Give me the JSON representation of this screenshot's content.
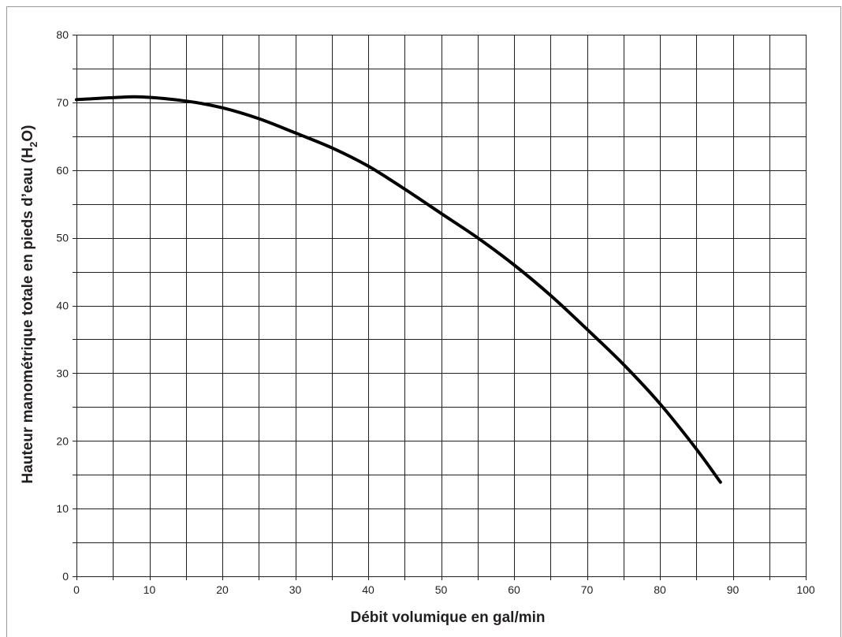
{
  "chart_data": {
    "type": "line",
    "xlabel": "Débit volumique en gal/min",
    "ylabel": {
      "before": "Hauteur manométrique totale en pieds d’eau (H",
      "subscript": "2",
      "after": "O)"
    },
    "xlim": [
      0,
      100
    ],
    "ylim": [
      0,
      80
    ],
    "xticks": [
      0,
      10,
      20,
      30,
      40,
      50,
      60,
      70,
      80,
      90,
      100
    ],
    "yticks": [
      0,
      10,
      20,
      30,
      40,
      50,
      60,
      70,
      80
    ],
    "grid": {
      "x_step": 5,
      "y_step": 5
    },
    "series": [
      {
        "x": [
          0,
          5,
          9,
          15,
          20,
          25,
          30,
          35,
          40,
          45,
          50,
          55,
          60,
          65,
          70,
          75,
          80,
          85,
          88.3
        ],
        "y": [
          70.4,
          70.7,
          70.8,
          70.2,
          69.2,
          67.6,
          65.5,
          63.3,
          60.6,
          57.2,
          53.6,
          50.0,
          46.0,
          41.5,
          36.5,
          31.3,
          25.5,
          18.8,
          13.9
        ],
        "color": "#000000"
      }
    ]
  }
}
